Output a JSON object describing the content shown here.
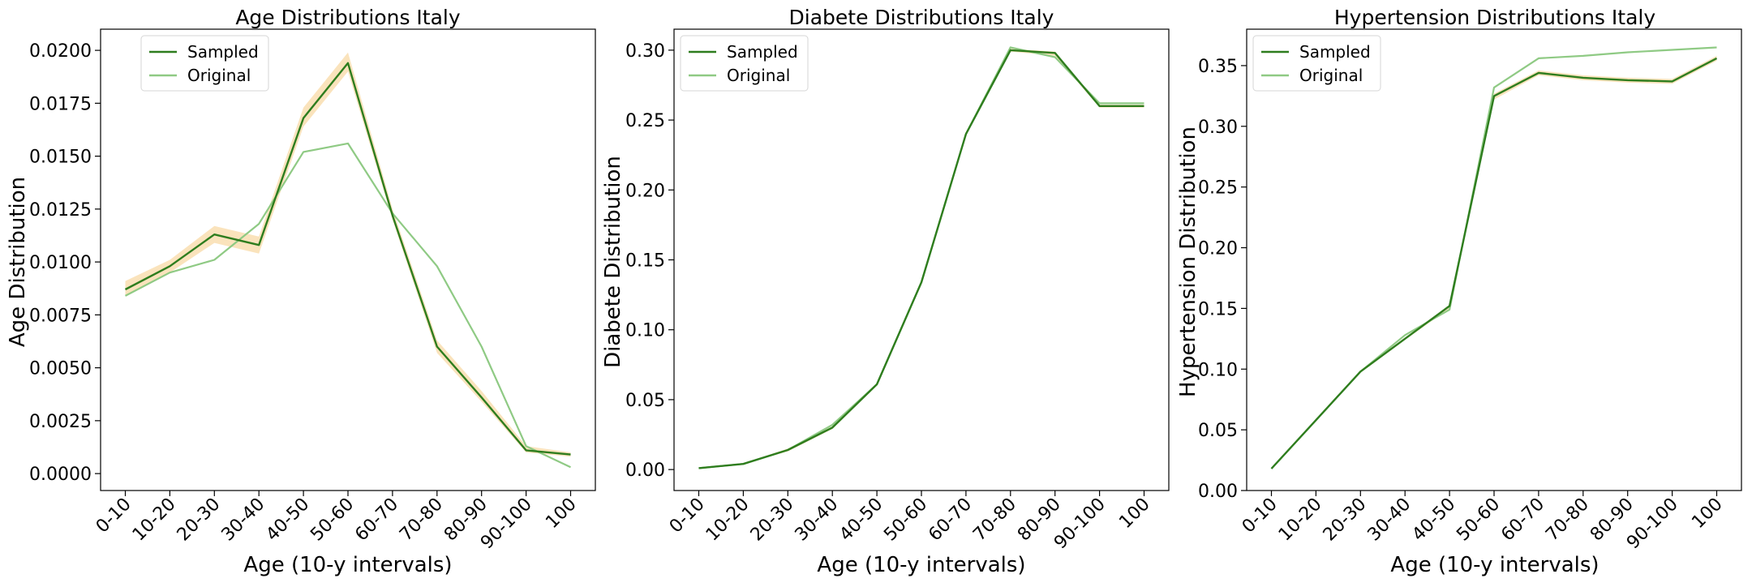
{
  "chart_data": [
    {
      "type": "line",
      "title": "Age Distributions Italy",
      "xlabel": "Age (10-y intervals)",
      "ylabel": "Age Distribution",
      "categories": [
        "0-10",
        "10-20",
        "20-30",
        "30-40",
        "40-50",
        "50-60",
        "60-70",
        "70-80",
        "80-90",
        "90-100",
        "100"
      ],
      "ylim": [
        -0.0008,
        0.021
      ],
      "yticks": [
        0.0,
        0.0025,
        0.005,
        0.0075,
        0.01,
        0.0125,
        0.015,
        0.0175,
        0.02
      ],
      "ytick_labels": [
        "0.0000",
        "0.0025",
        "0.0050",
        "0.0075",
        "0.0100",
        "0.0125",
        "0.0150",
        "0.0175",
        "0.0200"
      ],
      "legend_position": "top-left",
      "series": [
        {
          "name": "Sampled",
          "color": "#2e7d1e",
          "values": [
            0.0087,
            0.0098,
            0.0113,
            0.0108,
            0.0168,
            0.0194,
            0.0122,
            0.006,
            0.0036,
            0.0011,
            0.0009
          ],
          "band_lower": [
            0.0084,
            0.0095,
            0.0109,
            0.0104,
            0.0164,
            0.019,
            0.012,
            0.0057,
            0.0034,
            0.001,
            0.0008
          ],
          "band_upper": [
            0.0091,
            0.0101,
            0.0117,
            0.0112,
            0.0173,
            0.0199,
            0.0125,
            0.0063,
            0.0039,
            0.0013,
            0.001
          ],
          "band_color": "#f5c26b"
        },
        {
          "name": "Original",
          "color": "#8fca84",
          "values": [
            0.0084,
            0.0095,
            0.0101,
            0.0118,
            0.0152,
            0.0156,
            0.0123,
            0.0098,
            0.006,
            0.0013,
            0.0003
          ]
        }
      ]
    },
    {
      "type": "line",
      "title": "Diabete Distributions Italy",
      "xlabel": "Age (10-y intervals)",
      "ylabel": "Diabete Distribution",
      "categories": [
        "0-10",
        "10-20",
        "20-30",
        "30-40",
        "40-50",
        "50-60",
        "60-70",
        "70-80",
        "80-90",
        "90-100",
        "100"
      ],
      "ylim": [
        -0.015,
        0.315
      ],
      "yticks": [
        0.0,
        0.05,
        0.1,
        0.15,
        0.2,
        0.25,
        0.3
      ],
      "ytick_labels": [
        "0.00",
        "0.05",
        "0.10",
        "0.15",
        "0.20",
        "0.25",
        "0.30"
      ],
      "legend_position": "top-left",
      "series": [
        {
          "name": "Sampled",
          "color": "#2e7d1e",
          "values": [
            0.001,
            0.004,
            0.014,
            0.03,
            0.061,
            0.134,
            0.24,
            0.3,
            0.298,
            0.26,
            0.26
          ],
          "band_lower": [
            0.001,
            0.004,
            0.013,
            0.029,
            0.06,
            0.133,
            0.239,
            0.299,
            0.296,
            0.259,
            0.259
          ],
          "band_upper": [
            0.0015,
            0.0045,
            0.015,
            0.031,
            0.062,
            0.135,
            0.241,
            0.301,
            0.299,
            0.261,
            0.261
          ],
          "band_color": "#f5c26b"
        },
        {
          "name": "Original",
          "color": "#8fca84",
          "values": [
            0.001,
            0.004,
            0.014,
            0.032,
            0.061,
            0.134,
            0.24,
            0.302,
            0.295,
            0.262,
            0.262
          ]
        }
      ]
    },
    {
      "type": "line",
      "title": "Hypertension Distributions Italy",
      "xlabel": "Age (10-y intervals)",
      "ylabel": "Hypertension Distribution",
      "categories": [
        "0-10",
        "10-20",
        "20-30",
        "30-40",
        "40-50",
        "50-60",
        "60-70",
        "70-80",
        "80-90",
        "90-100",
        "100"
      ],
      "ylim": [
        0.0,
        0.38
      ],
      "yticks": [
        0.0,
        0.05,
        0.1,
        0.15,
        0.2,
        0.25,
        0.3,
        0.35
      ],
      "ytick_labels": [
        "0.00",
        "0.05",
        "0.10",
        "0.15",
        "0.20",
        "0.25",
        "0.30",
        "0.35"
      ],
      "legend_position": "top-left",
      "series": [
        {
          "name": "Sampled",
          "color": "#2e7d1e",
          "values": [
            0.018,
            0.058,
            0.098,
            0.125,
            0.152,
            0.325,
            0.344,
            0.34,
            0.338,
            0.337,
            0.356
          ],
          "band_lower": [
            0.018,
            0.057,
            0.097,
            0.124,
            0.15,
            0.322,
            0.342,
            0.338,
            0.336,
            0.335,
            0.354
          ],
          "band_upper": [
            0.019,
            0.059,
            0.099,
            0.126,
            0.153,
            0.327,
            0.346,
            0.342,
            0.34,
            0.339,
            0.358
          ],
          "band_color": "#f5c26b"
        },
        {
          "name": "Original",
          "color": "#8fca84",
          "values": [
            0.018,
            0.058,
            0.098,
            0.128,
            0.149,
            0.332,
            0.356,
            0.358,
            0.361,
            0.363,
            0.365
          ]
        }
      ]
    }
  ]
}
